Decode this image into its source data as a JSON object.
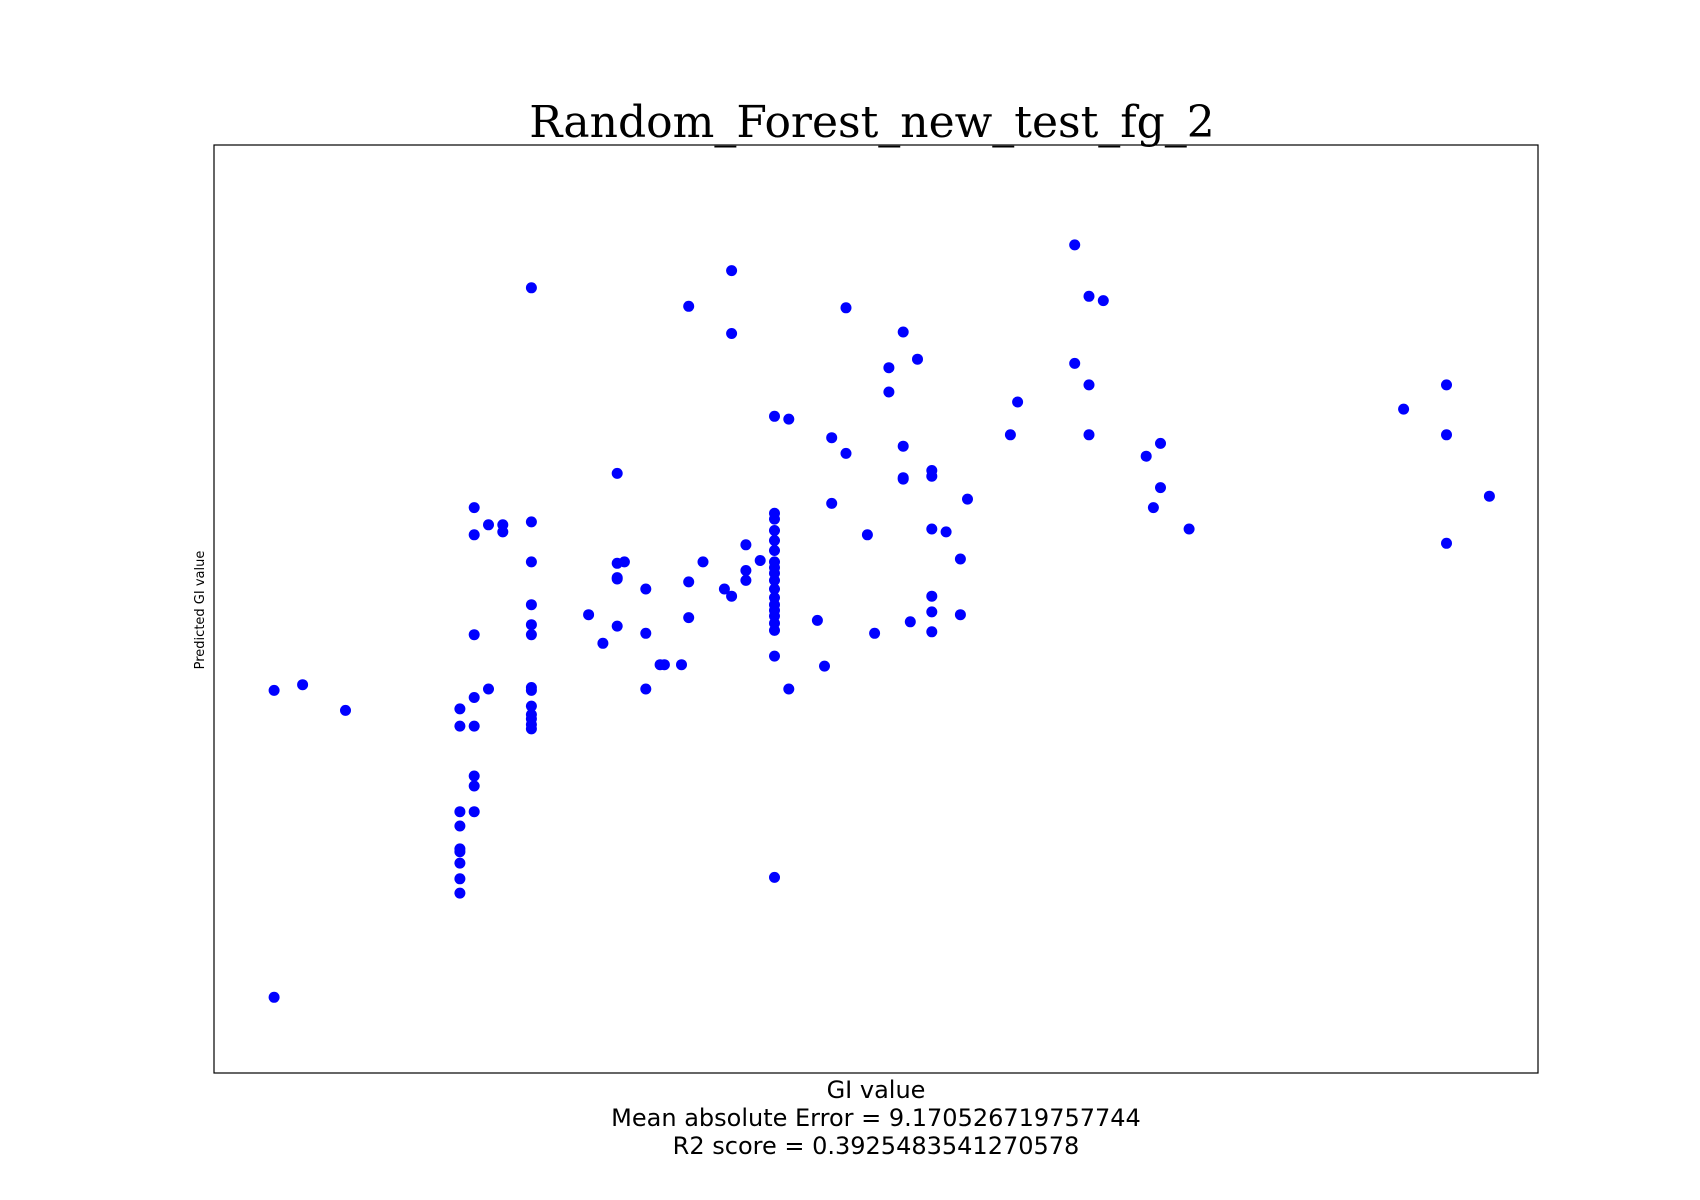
{
  "chart_data": {
    "type": "scatter",
    "title": "Random_Forest_new_test_fg_2",
    "xlabel": "GI value",
    "ylabel": "Predicted GI value",
    "xlabel_extra": [
      "Mean absolute Error = 9.170526719757744",
      "R2 score = 0.3925483541270578"
    ],
    "grid": false,
    "xlim": [
      21.8,
      114.4
    ],
    "ylim": [
      32.7,
      97.7
    ],
    "point_color": "#0000ff",
    "points": [
      [
        26,
        38
      ],
      [
        26,
        59.5
      ],
      [
        28,
        59.9
      ],
      [
        31,
        58.1
      ],
      [
        39,
        58.2
      ],
      [
        39,
        57
      ],
      [
        39,
        51
      ],
      [
        39,
        50
      ],
      [
        39,
        48.4
      ],
      [
        39,
        48.2
      ],
      [
        39,
        47.4
      ],
      [
        39,
        46.3
      ],
      [
        39,
        45.3
      ],
      [
        40,
        72.3
      ],
      [
        40,
        70.4
      ],
      [
        40,
        63.4
      ],
      [
        40,
        59
      ],
      [
        40,
        57
      ],
      [
        40,
        53.5
      ],
      [
        40,
        52.8
      ],
      [
        40,
        51
      ],
      [
        41,
        71.1
      ],
      [
        41,
        59.6
      ],
      [
        42,
        71.1
      ],
      [
        42,
        70.6
      ],
      [
        44,
        87.7
      ],
      [
        44,
        71.3
      ],
      [
        44,
        68.5
      ],
      [
        44,
        65.5
      ],
      [
        44,
        64.1
      ],
      [
        44,
        63.4
      ],
      [
        44,
        59.7
      ],
      [
        44,
        59.5
      ],
      [
        44,
        58.4
      ],
      [
        44,
        57.8
      ],
      [
        44,
        57.5
      ],
      [
        44,
        57.1
      ],
      [
        44,
        56.8
      ],
      [
        48,
        64.8
      ],
      [
        49,
        62.8
      ],
      [
        50,
        74.7
      ],
      [
        50,
        68.4
      ],
      [
        50,
        67.4
      ],
      [
        50,
        67.3
      ],
      [
        50,
        64.0
      ],
      [
        50.5,
        68.5
      ],
      [
        52,
        66.6
      ],
      [
        52,
        63.5
      ],
      [
        52,
        59.6
      ],
      [
        53,
        61.3
      ],
      [
        53.3,
        61.3
      ],
      [
        54.5,
        61.3
      ],
      [
        55,
        86.4
      ],
      [
        55,
        67.1
      ],
      [
        55,
        64.6
      ],
      [
        56,
        68.5
      ],
      [
        58,
        88.9
      ],
      [
        58,
        84.5
      ],
      [
        58,
        66.1
      ],
      [
        57.5,
        66.6
      ],
      [
        59,
        67.9
      ],
      [
        59,
        67.2
      ],
      [
        59,
        69.7
      ],
      [
        60,
        68.6
      ],
      [
        61,
        78.7
      ],
      [
        61,
        71.9
      ],
      [
        61,
        71.5
      ],
      [
        61,
        70.7
      ],
      [
        61,
        70.0
      ],
      [
        61,
        69.3
      ],
      [
        61,
        68.5
      ],
      [
        61,
        68.1
      ],
      [
        61,
        67.7
      ],
      [
        61,
        67.2
      ],
      [
        61,
        66.6
      ],
      [
        61,
        66.0
      ],
      [
        61,
        65.5
      ],
      [
        61,
        65.1
      ],
      [
        61,
        64.7
      ],
      [
        61,
        64.2
      ],
      [
        61,
        63.7
      ],
      [
        61,
        61.9
      ],
      [
        61,
        46.4
      ],
      [
        62,
        78.5
      ],
      [
        62,
        59.6
      ],
      [
        64,
        64.4
      ],
      [
        64.5,
        61.2
      ],
      [
        65,
        77.2
      ],
      [
        65,
        72.6
      ],
      [
        66,
        86.3
      ],
      [
        66,
        76.1
      ],
      [
        67.5,
        70.4
      ],
      [
        68,
        63.5
      ],
      [
        69,
        82.1
      ],
      [
        69,
        80.4
      ],
      [
        70,
        84.6
      ],
      [
        70,
        76.6
      ],
      [
        70,
        74.4
      ],
      [
        70,
        74.3
      ],
      [
        70.5,
        64.3
      ],
      [
        71,
        82.7
      ],
      [
        72,
        74.9
      ],
      [
        72,
        74.5
      ],
      [
        72,
        70.8
      ],
      [
        72,
        66.1
      ],
      [
        72,
        65.0
      ],
      [
        72,
        63.6
      ],
      [
        73,
        70.6
      ],
      [
        74,
        68.7
      ],
      [
        74,
        64.8
      ],
      [
        74.5,
        72.9
      ],
      [
        77.5,
        77.4
      ],
      [
        78,
        79.7
      ],
      [
        82,
        90.7
      ],
      [
        82,
        82.4
      ],
      [
        83,
        87.1
      ],
      [
        83,
        80.9
      ],
      [
        83,
        77.4
      ],
      [
        84,
        86.8
      ],
      [
        87,
        75.9
      ],
      [
        87.5,
        72.3
      ],
      [
        88,
        76.8
      ],
      [
        88,
        73.7
      ],
      [
        90,
        70.8
      ],
      [
        105,
        79.2
      ],
      [
        108,
        80.9
      ],
      [
        108,
        77.4
      ],
      [
        108,
        69.8
      ],
      [
        111,
        73.1
      ]
    ]
  }
}
